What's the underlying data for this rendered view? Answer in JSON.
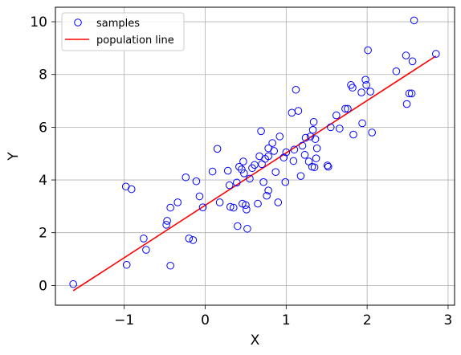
{
  "chart_data": {
    "type": "scatter",
    "xlabel": "X",
    "ylabel": "Y",
    "xlim": [
      -1.85,
      3.08
    ],
    "ylim": [
      -0.75,
      10.55
    ],
    "xticks": [
      -1,
      0,
      1,
      2,
      3
    ],
    "xtick_labels": [
      "−1",
      "0",
      "1",
      "2",
      "3"
    ],
    "yticks": [
      0,
      2,
      4,
      6,
      8,
      10
    ],
    "ytick_labels": [
      "0",
      "2",
      "4",
      "6",
      "8",
      "10"
    ],
    "grid": true,
    "legend_position": "top-left",
    "series": [
      {
        "name": "samples",
        "kind": "scatter",
        "color": "#0000ff",
        "marker": "open-circle",
        "points": [
          [
            -1.63,
            0.05
          ],
          [
            -0.98,
            3.75
          ],
          [
            -0.91,
            3.65
          ],
          [
            -0.97,
            0.78
          ],
          [
            -0.76,
            1.78
          ],
          [
            -0.73,
            1.35
          ],
          [
            -0.47,
            2.45
          ],
          [
            -0.48,
            2.3
          ],
          [
            -0.43,
            2.95
          ],
          [
            -0.43,
            0.75
          ],
          [
            -0.34,
            3.15
          ],
          [
            -0.24,
            4.1
          ],
          [
            -0.2,
            1.78
          ],
          [
            -0.15,
            1.72
          ],
          [
            -0.11,
            3.95
          ],
          [
            -0.07,
            3.38
          ],
          [
            -0.03,
            2.96
          ],
          [
            0.09,
            4.32
          ],
          [
            0.15,
            5.18
          ],
          [
            0.18,
            3.15
          ],
          [
            0.28,
            4.35
          ],
          [
            0.3,
            3.8
          ],
          [
            0.31,
            2.98
          ],
          [
            0.35,
            2.95
          ],
          [
            0.39,
            3.9
          ],
          [
            0.4,
            2.25
          ],
          [
            0.42,
            4.5
          ],
          [
            0.45,
            4.4
          ],
          [
            0.46,
            3.1
          ],
          [
            0.47,
            4.7
          ],
          [
            0.48,
            4.25
          ],
          [
            0.5,
            3.05
          ],
          [
            0.51,
            2.88
          ],
          [
            0.52,
            2.15
          ],
          [
            0.55,
            4.05
          ],
          [
            0.58,
            4.45
          ],
          [
            0.61,
            4.57
          ],
          [
            0.65,
            3.1
          ],
          [
            0.67,
            4.9
          ],
          [
            0.69,
            5.85
          ],
          [
            0.7,
            4.6
          ],
          [
            0.72,
            3.92
          ],
          [
            0.74,
            4.8
          ],
          [
            0.76,
            3.4
          ],
          [
            0.78,
            3.6
          ],
          [
            0.78,
            4.9
          ],
          [
            0.78,
            5.2
          ],
          [
            0.83,
            5.4
          ],
          [
            0.85,
            5.1
          ],
          [
            0.87,
            4.3
          ],
          [
            0.9,
            3.15
          ],
          [
            0.92,
            5.65
          ],
          [
            0.97,
            4.85
          ],
          [
            0.99,
            3.92
          ],
          [
            1.0,
            5.05
          ],
          [
            1.07,
            6.55
          ],
          [
            1.09,
            4.72
          ],
          [
            1.1,
            5.15
          ],
          [
            1.12,
            7.42
          ],
          [
            1.15,
            6.62
          ],
          [
            1.18,
            4.15
          ],
          [
            1.2,
            5.3
          ],
          [
            1.23,
            4.95
          ],
          [
            1.24,
            5.6
          ],
          [
            1.28,
            4.7
          ],
          [
            1.3,
            5.65
          ],
          [
            1.32,
            4.5
          ],
          [
            1.33,
            5.9
          ],
          [
            1.34,
            6.2
          ],
          [
            1.35,
            4.48
          ],
          [
            1.36,
            5.55
          ],
          [
            1.37,
            4.82
          ],
          [
            1.38,
            5.2
          ],
          [
            1.51,
            4.55
          ],
          [
            1.52,
            4.5
          ],
          [
            1.55,
            6.0
          ],
          [
            1.62,
            6.45
          ],
          [
            1.66,
            5.95
          ],
          [
            1.73,
            6.7
          ],
          [
            1.76,
            6.7
          ],
          [
            1.8,
            7.6
          ],
          [
            1.82,
            7.5
          ],
          [
            1.83,
            5.72
          ],
          [
            1.93,
            7.32
          ],
          [
            1.94,
            6.15
          ],
          [
            1.98,
            7.8
          ],
          [
            1.99,
            7.6
          ],
          [
            2.01,
            8.92
          ],
          [
            2.04,
            7.35
          ],
          [
            2.06,
            5.8
          ],
          [
            2.36,
            8.12
          ],
          [
            2.48,
            8.72
          ],
          [
            2.49,
            6.88
          ],
          [
            2.52,
            7.28
          ],
          [
            2.55,
            7.28
          ],
          [
            2.56,
            8.5
          ],
          [
            2.58,
            10.05
          ],
          [
            2.85,
            8.78
          ]
        ]
      },
      {
        "name": "population line",
        "kind": "line",
        "color": "#ff0000",
        "points": [
          [
            -1.63,
            -0.2
          ],
          [
            2.85,
            8.7
          ]
        ]
      }
    ]
  }
}
